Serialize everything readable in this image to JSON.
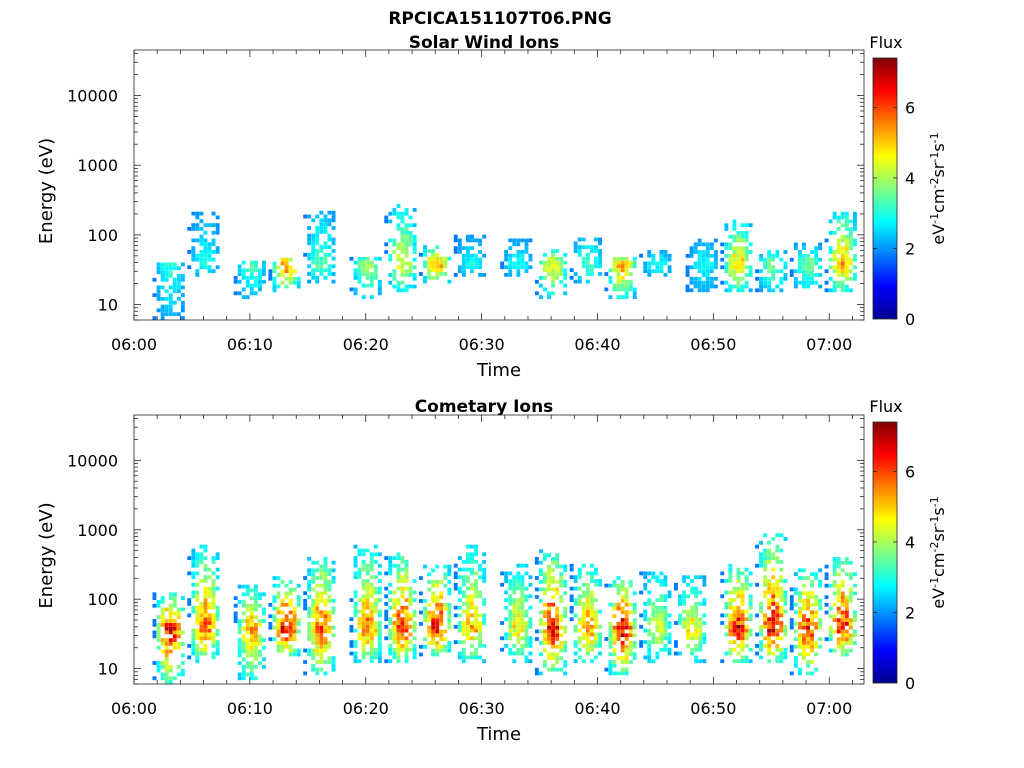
{
  "figure": {
    "title": "RPCICA151107T06.PNG"
  },
  "colormap": [
    "#00008f",
    "#0000ff",
    "#0080ff",
    "#00ffff",
    "#80ff80",
    "#ffff00",
    "#ff8000",
    "#ff0000",
    "#800000"
  ],
  "chart_data": [
    {
      "type": "heatmap",
      "title": "Solar Wind Ions",
      "xlabel": "Time",
      "ylabel": "Energy (eV)",
      "yscale": "log",
      "ylim": [
        6,
        45000
      ],
      "xlim": [
        "06:00",
        "07:03"
      ],
      "x_ticks": [
        "06:00",
        "06:10",
        "06:20",
        "06:30",
        "06:40",
        "06:50",
        "07:00"
      ],
      "y_ticks": [
        "10",
        "100",
        "1000",
        "10000"
      ],
      "colorbar": {
        "label": "Flux",
        "units": "eV-1cm-2sr-1s-1",
        "range": [
          0,
          7.4
        ],
        "ticks": [
          "0",
          "2",
          "4",
          "6"
        ]
      },
      "bursts": [
        {
          "t": "06:03",
          "emin": 6,
          "emax": 40,
          "peak": 3.2
        },
        {
          "t": "06:06",
          "emin": 25,
          "emax": 200,
          "peak": 3.0
        },
        {
          "t": "06:10",
          "emin": 12,
          "emax": 40,
          "peak": 3.5
        },
        {
          "t": "06:13",
          "emin": 15,
          "emax": 45,
          "peak": 5.8
        },
        {
          "t": "06:16",
          "emin": 20,
          "emax": 200,
          "peak": 3.6
        },
        {
          "t": "06:20",
          "emin": 12,
          "emax": 45,
          "peak": 4.2
        },
        {
          "t": "06:23",
          "emin": 15,
          "emax": 250,
          "peak": 4.8
        },
        {
          "t": "06:26",
          "emin": 20,
          "emax": 70,
          "peak": 5.6
        },
        {
          "t": "06:29",
          "emin": 25,
          "emax": 90,
          "peak": 3.0
        },
        {
          "t": "06:33",
          "emin": 25,
          "emax": 80,
          "peak": 3.0
        },
        {
          "t": "06:36",
          "emin": 12,
          "emax": 60,
          "peak": 5.0
        },
        {
          "t": "06:39",
          "emin": 20,
          "emax": 90,
          "peak": 3.5
        },
        {
          "t": "06:42",
          "emin": 12,
          "emax": 45,
          "peak": 5.6
        },
        {
          "t": "06:45",
          "emin": 25,
          "emax": 60,
          "peak": 3.0
        },
        {
          "t": "06:49",
          "emin": 15,
          "emax": 80,
          "peak": 3.0
        },
        {
          "t": "06:52",
          "emin": 15,
          "emax": 150,
          "peak": 5.2
        },
        {
          "t": "06:55",
          "emin": 15,
          "emax": 60,
          "peak": 4.0
        },
        {
          "t": "06:58",
          "emin": 15,
          "emax": 70,
          "peak": 3.8
        },
        {
          "t": "07:01",
          "emin": 15,
          "emax": 200,
          "peak": 5.6
        }
      ]
    },
    {
      "type": "heatmap",
      "title": "Cometary Ions",
      "xlabel": "Time",
      "ylabel": "Energy (eV)",
      "yscale": "log",
      "ylim": [
        6,
        45000
      ],
      "xlim": [
        "06:00",
        "07:03"
      ],
      "x_ticks": [
        "06:00",
        "06:10",
        "06:20",
        "06:30",
        "06:40",
        "06:50",
        "07:00"
      ],
      "y_ticks": [
        "10",
        "100",
        "1000",
        "10000"
      ],
      "colorbar": {
        "label": "Flux",
        "units": "eV-1cm-2sr-1s-1",
        "range": [
          0,
          7.4
        ],
        "ticks": [
          "0",
          "2",
          "4",
          "6"
        ]
      },
      "bursts": [
        {
          "t": "06:03",
          "emin": 6,
          "emax": 120,
          "peak": 6.8
        },
        {
          "t": "06:06",
          "emin": 12,
          "emax": 550,
          "peak": 6.0
        },
        {
          "t": "06:10",
          "emin": 6,
          "emax": 150,
          "peak": 5.5
        },
        {
          "t": "06:13",
          "emin": 15,
          "emax": 200,
          "peak": 7.0
        },
        {
          "t": "06:16",
          "emin": 8,
          "emax": 400,
          "peak": 6.2
        },
        {
          "t": "06:20",
          "emin": 12,
          "emax": 600,
          "peak": 5.8
        },
        {
          "t": "06:23",
          "emin": 12,
          "emax": 450,
          "peak": 6.5
        },
        {
          "t": "06:26",
          "emin": 15,
          "emax": 300,
          "peak": 6.8
        },
        {
          "t": "06:29",
          "emin": 12,
          "emax": 550,
          "peak": 5.5
        },
        {
          "t": "06:33",
          "emin": 12,
          "emax": 300,
          "peak": 5.0
        },
        {
          "t": "06:36",
          "emin": 8,
          "emax": 500,
          "peak": 6.8
        },
        {
          "t": "06:39",
          "emin": 12,
          "emax": 300,
          "peak": 5.8
        },
        {
          "t": "06:42",
          "emin": 8,
          "emax": 200,
          "peak": 7.0
        },
        {
          "t": "06:45",
          "emin": 12,
          "emax": 250,
          "peak": 4.5
        },
        {
          "t": "06:48",
          "emin": 12,
          "emax": 200,
          "peak": 5.0
        },
        {
          "t": "06:52",
          "emin": 12,
          "emax": 300,
          "peak": 6.8
        },
        {
          "t": "06:55",
          "emin": 12,
          "emax": 800,
          "peak": 6.8
        },
        {
          "t": "06:58",
          "emin": 8,
          "emax": 250,
          "peak": 6.5
        },
        {
          "t": "07:01",
          "emin": 15,
          "emax": 400,
          "peak": 6.8
        }
      ]
    }
  ]
}
